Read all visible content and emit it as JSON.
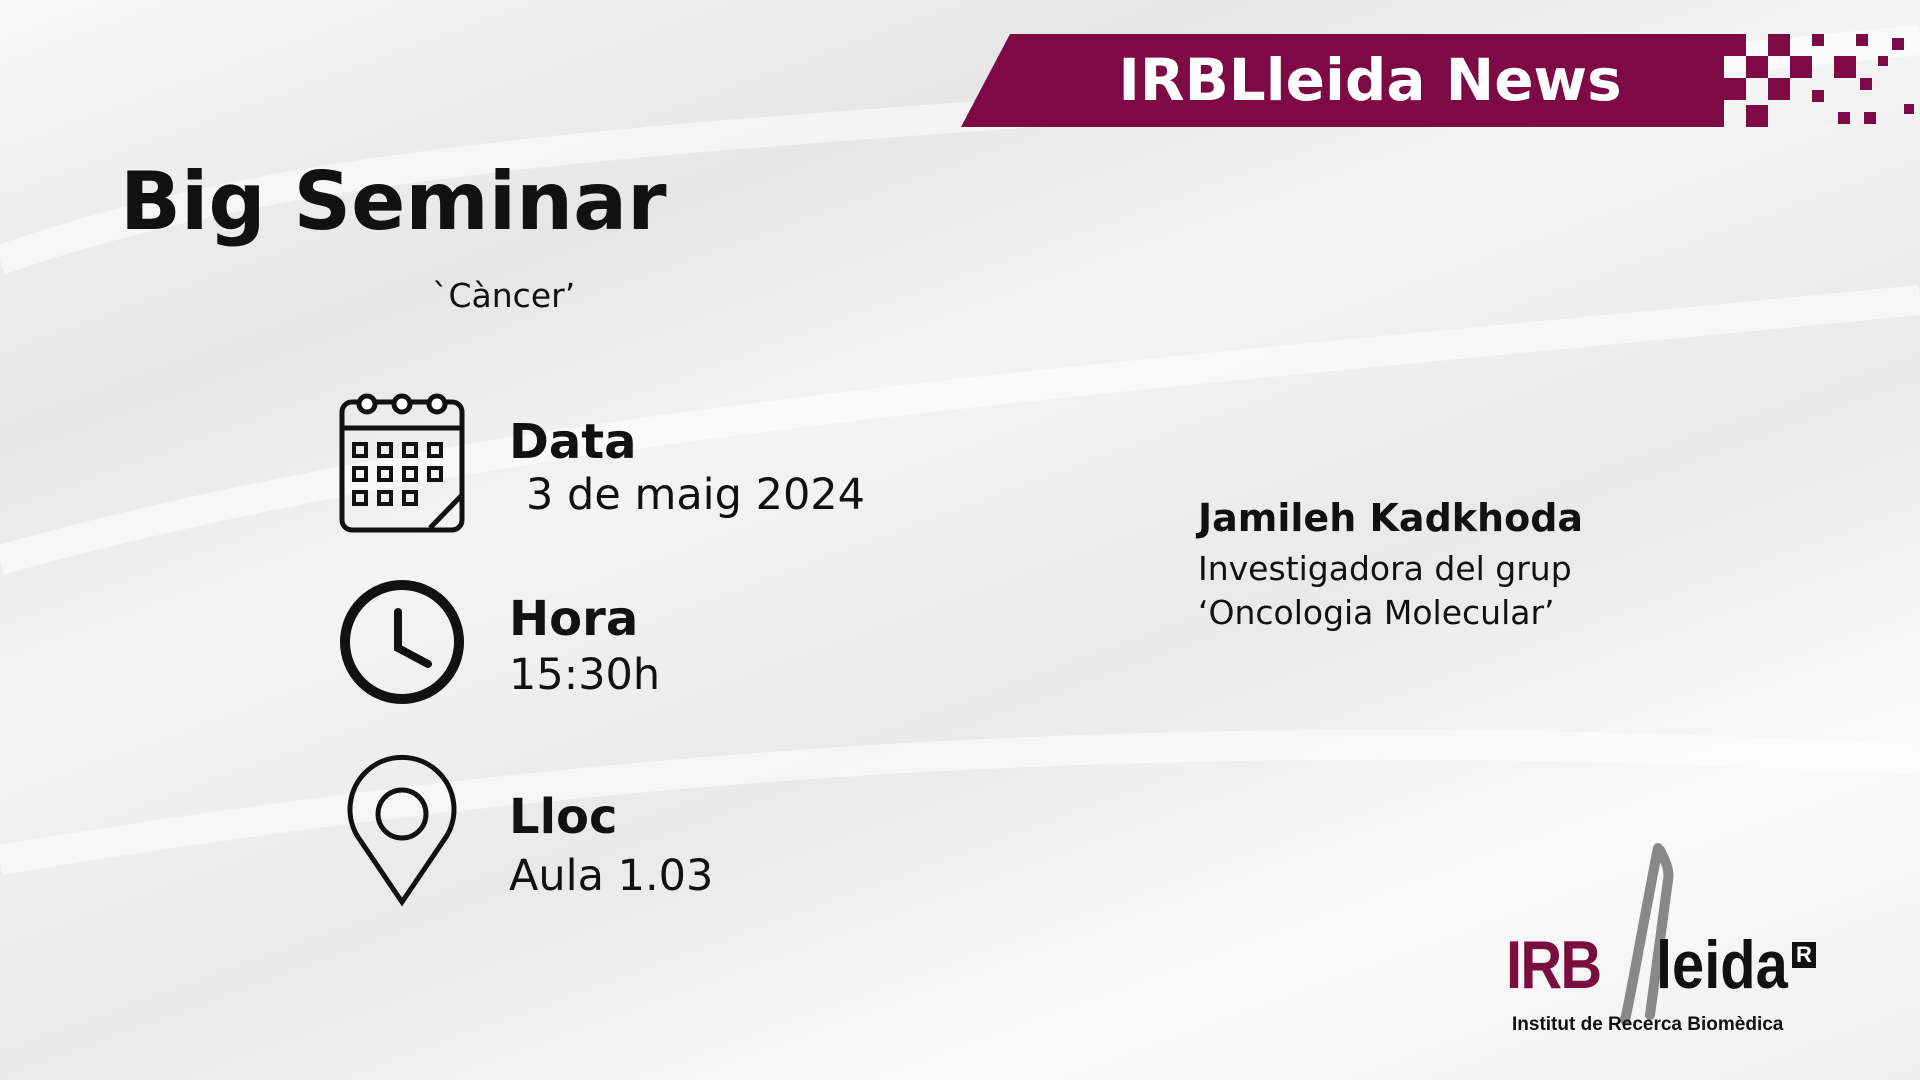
{
  "header": {
    "banner": "IRBLleida News"
  },
  "title": "Big Seminar",
  "subtitle": "`Càncer’",
  "details": [
    {
      "label": "Data",
      "value": "3 de maig 2024"
    },
    {
      "label": "Hora",
      "value": "15:30h"
    },
    {
      "label": "Lloc",
      "value": "Aula 1.03"
    }
  ],
  "speaker": {
    "name": "Jamileh Kadkhoda",
    "role": "Investigadora del grup",
    "group": "‘Oncologia Molecular’"
  },
  "logo": {
    "part1": "IRB",
    "part2": "leida",
    "mark": "R",
    "subtitle": "Institut de Recerca Biomèdica"
  }
}
